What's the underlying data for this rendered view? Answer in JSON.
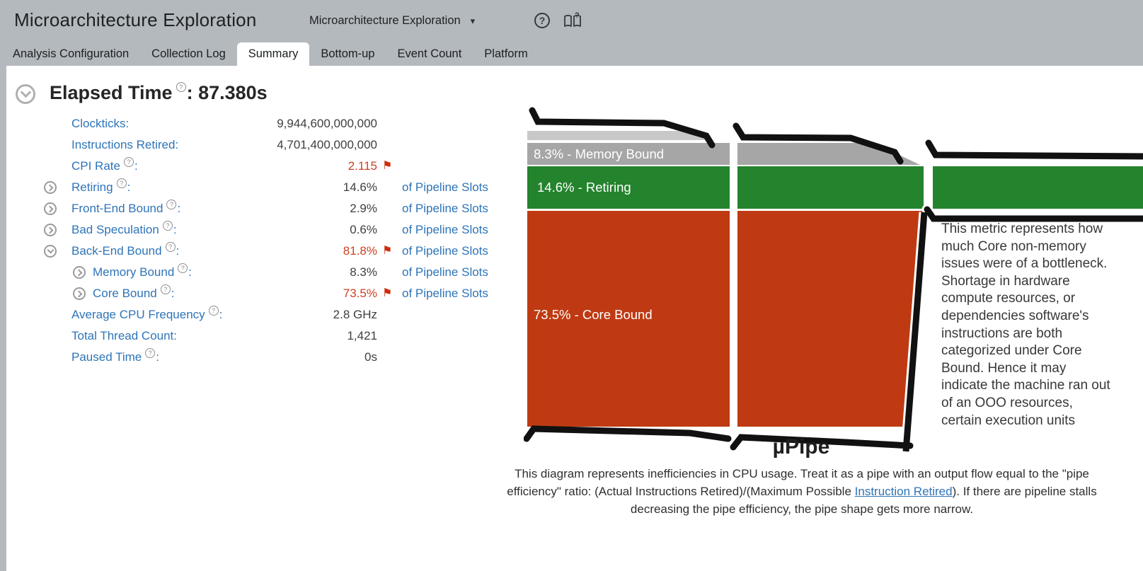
{
  "ui": {
    "colon": ":",
    "caret": "▾",
    "flag_glyph": "⚑",
    "help_glyph": "?"
  },
  "header": {
    "title": "Microarchitecture Exploration",
    "analysis_selector_value": "Microarchitecture Exploration",
    "help_icon": "?",
    "tabs": [
      {
        "label": "Analysis Configuration",
        "active": false
      },
      {
        "label": "Collection Log",
        "active": false
      },
      {
        "label": "Summary",
        "active": true
      },
      {
        "label": "Bottom-up",
        "active": false
      },
      {
        "label": "Event Count",
        "active": false
      },
      {
        "label": "Platform",
        "active": false
      }
    ]
  },
  "summary": {
    "section_title": "Elapsed Time",
    "section_value": "87.380s",
    "metrics": [
      {
        "label": "Clockticks",
        "value": "9,944,600,000,000",
        "unit": "",
        "indent": 0,
        "expandable": false,
        "expanded": false,
        "help": false,
        "alert": false
      },
      {
        "label": "Instructions Retired",
        "value": "4,701,400,000,000",
        "unit": "",
        "indent": 0,
        "expandable": false,
        "expanded": false,
        "help": false,
        "alert": false
      },
      {
        "label": "CPI Rate",
        "value": "2.115",
        "unit": "",
        "indent": 0,
        "expandable": false,
        "expanded": false,
        "help": true,
        "alert": true
      },
      {
        "label": "Retiring",
        "value": "14.6%",
        "unit": "of Pipeline Slots",
        "indent": 0,
        "expandable": true,
        "expanded": false,
        "help": true,
        "alert": false
      },
      {
        "label": "Front-End Bound",
        "value": "2.9%",
        "unit": "of Pipeline Slots",
        "indent": 0,
        "expandable": true,
        "expanded": false,
        "help": true,
        "alert": false
      },
      {
        "label": "Bad Speculation",
        "value": "0.6%",
        "unit": "of Pipeline Slots",
        "indent": 0,
        "expandable": true,
        "expanded": false,
        "help": true,
        "alert": false
      },
      {
        "label": "Back-End Bound",
        "value": "81.8%",
        "unit": "of Pipeline Slots",
        "indent": 0,
        "expandable": true,
        "expanded": true,
        "help": true,
        "alert": true
      },
      {
        "label": "Memory Bound",
        "value": "8.3%",
        "unit": "of Pipeline Slots",
        "indent": 1,
        "expandable": true,
        "expanded": false,
        "help": true,
        "alert": false
      },
      {
        "label": "Core Bound",
        "value": "73.5%",
        "unit": "of Pipeline Slots",
        "indent": 1,
        "expandable": true,
        "expanded": false,
        "help": true,
        "alert": true
      },
      {
        "label": "Average CPU Frequency",
        "value": "2.8 GHz",
        "unit": "",
        "indent": 0,
        "expandable": false,
        "expanded": false,
        "help": true,
        "alert": false
      },
      {
        "label": "Total Thread Count",
        "value": "1,421",
        "unit": "",
        "indent": 0,
        "expandable": false,
        "expanded": false,
        "help": false,
        "alert": false
      },
      {
        "label": "Paused Time",
        "value": "0s",
        "unit": "",
        "indent": 0,
        "expandable": false,
        "expanded": false,
        "help": true,
        "alert": false
      }
    ]
  },
  "pipe": {
    "labels": {
      "memory_bound": "8.3% - Memory Bound",
      "retiring": "14.6% - Retiring",
      "core_bound": "73.5% - Core Bound"
    },
    "colors": {
      "memory_bound": "#a6a6a6",
      "memory_bound_light": "#c8c8c8",
      "retiring": "#24832d",
      "core_bound": "#bf3a12",
      "outline": "#111111"
    },
    "tooltip_text": "This metric represents how much Core non-memory issues were of a bottleneck. Shortage in hardware compute resources, or dependencies software's instructions are both categorized under Core Bound. Hence it may indicate the machine ran out of an OOO resources, certain execution units"
  },
  "upipe": {
    "title": "µPipe",
    "desc_before": "This diagram represents inefficiencies in CPU usage. Treat it as a pipe with an output flow equal to the \"pipe efficiency\" ratio: (Actual Instructions Retired)/(Maximum Possible ",
    "link_text": "Instruction Retired",
    "desc_after": "). If there are pipeline stalls decreasing the pipe efficiency, the pipe shape gets more narrow."
  }
}
